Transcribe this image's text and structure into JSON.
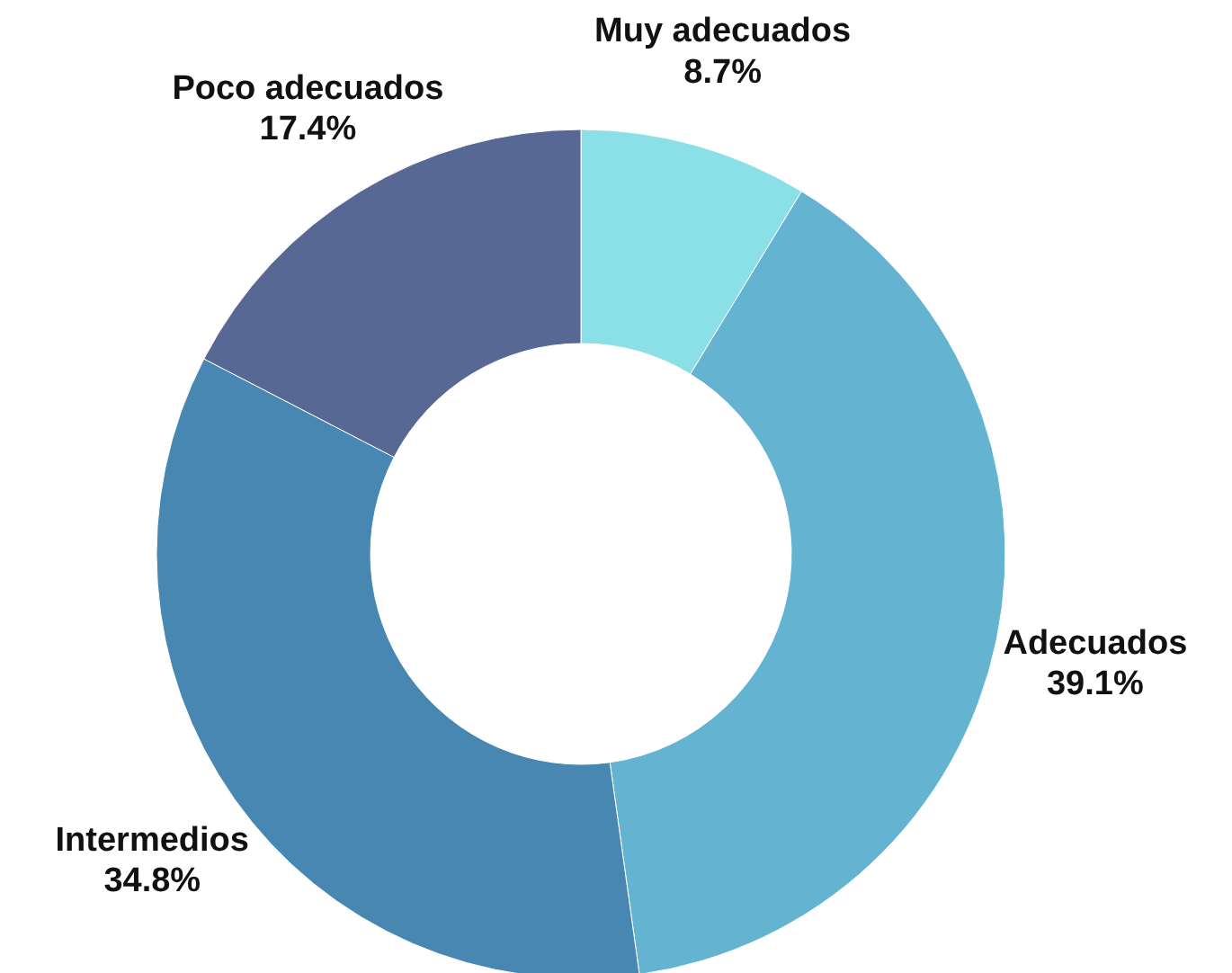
{
  "chart_data": {
    "type": "donut",
    "categories": [
      "Muy adecuados",
      "Adecuados",
      "Intermedios",
      "Poco adecuados"
    ],
    "values": [
      8.7,
      39.1,
      34.8,
      17.4
    ],
    "value_labels": [
      "8.7%",
      "39.1%",
      "34.8%",
      "17.4%"
    ],
    "colors": [
      "#8ae0e6",
      "#64b3d1",
      "#4787b2",
      "#566893"
    ]
  }
}
